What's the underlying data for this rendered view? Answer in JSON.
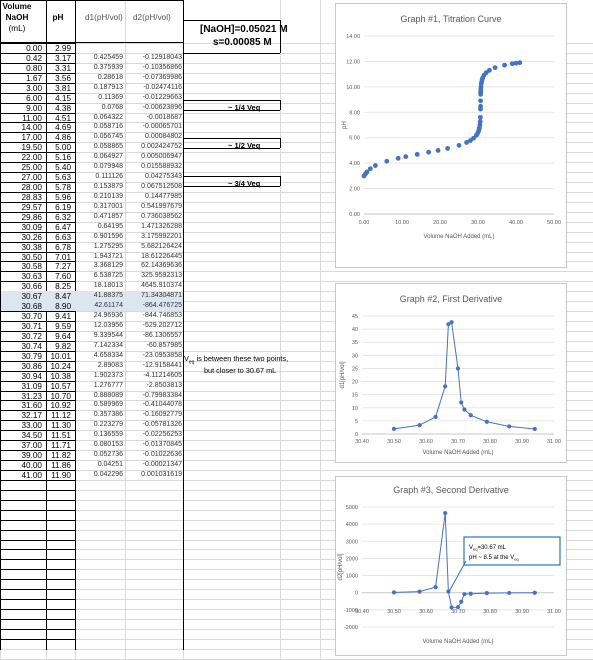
{
  "header": {
    "volume": "Volume",
    "naoh": "NaOH",
    "ml": "(mL)",
    "ph": "pH",
    "d1": "d1(pH/vol)",
    "d2": "d2(pH/vol)"
  },
  "concentration": "[NaOH]=0.05021 M",
  "stdev": "s=0.00085 M",
  "notes": {
    "quarter": "~ 1/4 Veq",
    "half": "~ 1/2 Veq",
    "three_quarter": "~ 3/4 Veq",
    "veq_line1": "V",
    "veq_sub": "eq",
    "veq_line1_rest": " is between these two points,",
    "veq_line2": "but closer to 30.67 mL"
  },
  "rows": [
    [
      "0.00",
      "2.99",
      "",
      ""
    ],
    [
      "0.42",
      "3.17",
      "0.425459",
      "-0.12918043"
    ],
    [
      "0.80",
      "3.31",
      "0.375939",
      "-0.10356866"
    ],
    [
      "1.67",
      "3.56",
      "0.28618",
      "-0.07369986"
    ],
    [
      "3.00",
      "3.81",
      "0.187913",
      "-0.02474116"
    ],
    [
      "6.00",
      "4.15",
      "0.11369",
      "-0.01229663"
    ],
    [
      "9.00",
      "4.38",
      "0.0768",
      "-0.00623896"
    ],
    [
      "11.00",
      "4.51",
      "0.064322",
      "-0.0018687"
    ],
    [
      "14.00",
      "4.69",
      "0.058716",
      "-0.00065701"
    ],
    [
      "17.00",
      "4.86",
      "0.056745",
      "0.00084802"
    ],
    [
      "19.50",
      "5.00",
      "0.058865",
      "0.002424752"
    ],
    [
      "22.00",
      "5.16",
      "0.064927",
      "0.005006947"
    ],
    [
      "25.00",
      "5.40",
      "0.079948",
      "0.015588932"
    ],
    [
      "27.00",
      "5.63",
      "0.111126",
      "0.04275343"
    ],
    [
      "28.00",
      "5.78",
      "0.153879",
      "0.067512508"
    ],
    [
      "28.83",
      "5.96",
      "0.210139",
      "0.14477985"
    ],
    [
      "29.57",
      "6.19",
      "0.317001",
      "0.541997679"
    ],
    [
      "29.86",
      "6.32",
      "0.471857",
      "0.736038562"
    ],
    [
      "30.09",
      "6.47",
      "0.64195",
      "1.471326288"
    ],
    [
      "30.26",
      "6.63",
      "0.901596",
      "3.175992201"
    ],
    [
      "30.38",
      "6.78",
      "1.275295",
      "5.682126424"
    ],
    [
      "30.50",
      "7.01",
      "1.943721",
      "18.61226445"
    ],
    [
      "30.58",
      "7.27",
      "3.368129",
      "62.14369636"
    ],
    [
      "30.63",
      "7.60",
      "6.538725",
      "325.9592313"
    ],
    [
      "30.66",
      "8.25",
      "18.18013",
      "4645.910374"
    ],
    [
      "30.67",
      "8.47",
      "41.88375",
      "71.34304871"
    ],
    [
      "30.68",
      "8.90",
      "42.61174",
      "-864.476725"
    ],
    [
      "30.70",
      "9.41",
      "24.96936",
      "-844.746853"
    ],
    [
      "30.71",
      "9.59",
      "12.03956",
      "-529.202712"
    ],
    [
      "30.72",
      "9.64",
      "9.339544",
      "-86.1306557"
    ],
    [
      "30.74",
      "9.82",
      "7.142334",
      "-60.857985"
    ],
    [
      "30.79",
      "10.01",
      "4.658334",
      "-23.0953858"
    ],
    [
      "30.86",
      "10.24",
      "2.89083",
      "-12.9158441"
    ],
    [
      "30.94",
      "10.38",
      "1.902373",
      "-4.11214605"
    ],
    [
      "31.09",
      "10.57",
      "1.276777",
      "-2.8503813"
    ],
    [
      "31.23",
      "10.70",
      "0.888089",
      "-0.79983384"
    ],
    [
      "31.60",
      "10.92",
      "0.589969",
      "-0.41044078"
    ],
    [
      "32.17",
      "11.12",
      "0.357386",
      "-0.16092779"
    ],
    [
      "33.00",
      "11.30",
      "0.223279",
      "-0.05781326"
    ],
    [
      "34.50",
      "11.51",
      "0.136559",
      "-0.02256253"
    ],
    [
      "37.00",
      "11.71",
      "0.080153",
      "-0.01370845"
    ],
    [
      "39.00",
      "11.82",
      "0.052736",
      "-0.01022636"
    ],
    [
      "40.00",
      "11.86",
      "0.04251",
      "-0.00021347"
    ],
    [
      "41.00",
      "11.90",
      "0.042296",
      "0.001031619"
    ]
  ],
  "charts": {
    "g1": {
      "title": "Graph #1, Titration Curve",
      "ylabel": "pH",
      "xlabel": "Volume NaOH Added (mL)",
      "xticks": [
        "0.00",
        "10.00",
        "20.00",
        "30.00",
        "40.00",
        "50.00"
      ],
      "yticks": [
        "0.00",
        "2.00",
        "4.00",
        "6.00",
        "8.00",
        "10.00",
        "12.00",
        "14.00"
      ]
    },
    "g2": {
      "title": "Graph #2, First Derivative",
      "ylabel": "d1[pH/vol]",
      "xlabel": "Volume NaOH Added (mL)",
      "xticks": [
        "30.40",
        "30.50",
        "30.60",
        "30.70",
        "30.80",
        "30.90",
        "31.00"
      ],
      "yticks": [
        "0",
        "5",
        "10",
        "15",
        "20",
        "25",
        "30",
        "35",
        "40",
        "45"
      ]
    },
    "g3": {
      "title": "Graph #3, Second Derivative",
      "ylabel": "d2[pH/vol]",
      "xlabel": "Volume NaOH Added (mL)",
      "xticks": [
        "30.40",
        "30.50",
        "30.60",
        "30.70",
        "30.80",
        "30.90",
        "31.00"
      ],
      "yticks": [
        "-2000",
        "-1000",
        "0",
        "1000",
        "2000",
        "3000",
        "4000",
        "5000"
      ],
      "ann1": "V",
      "ann1_sub": "eq",
      "ann1_rest": "=30.67 mL",
      "ann2": "pH ~ 8.5 at the V",
      "ann2_sub": "eq"
    }
  },
  "chart_data": [
    {
      "type": "scatter",
      "title": "Graph #1, Titration Curve",
      "xlabel": "Volume NaOH Added (mL)",
      "ylabel": "pH",
      "xlim": [
        0,
        50
      ],
      "ylim": [
        0,
        14
      ],
      "grid": true,
      "x": [
        0,
        0.42,
        0.8,
        1.67,
        3,
        6,
        9,
        11,
        14,
        17,
        19.5,
        22,
        25,
        27,
        28,
        28.83,
        29.57,
        29.86,
        30.09,
        30.26,
        30.38,
        30.5,
        30.58,
        30.63,
        30.66,
        30.67,
        30.68,
        30.7,
        30.71,
        30.72,
        30.74,
        30.79,
        30.86,
        30.94,
        31.09,
        31.23,
        31.6,
        32.17,
        33,
        34.5,
        37,
        39,
        40,
        41
      ],
      "y": [
        2.99,
        3.17,
        3.31,
        3.56,
        3.81,
        4.15,
        4.38,
        4.51,
        4.69,
        4.86,
        5,
        5.16,
        5.4,
        5.63,
        5.78,
        5.96,
        6.19,
        6.32,
        6.47,
        6.63,
        6.78,
        7.01,
        7.27,
        7.6,
        8.25,
        8.47,
        8.9,
        9.41,
        9.59,
        9.64,
        9.82,
        10.01,
        10.24,
        10.38,
        10.57,
        10.7,
        10.92,
        11.12,
        11.3,
        11.51,
        11.71,
        11.82,
        11.86,
        11.9
      ]
    },
    {
      "type": "line",
      "title": "Graph #2, First Derivative",
      "xlabel": "Volume NaOH Added (mL)",
      "ylabel": "d1[pH/vol]",
      "xlim": [
        30.4,
        31.0
      ],
      "ylim": [
        0,
        45
      ],
      "grid": true,
      "x": [
        30.38,
        30.5,
        30.58,
        30.63,
        30.66,
        30.67,
        30.68,
        30.7,
        30.71,
        30.72,
        30.74,
        30.79,
        30.86,
        30.94,
        31.09
      ],
      "y": [
        1.275,
        1.944,
        3.368,
        6.539,
        18.18,
        41.88,
        42.61,
        24.97,
        12.04,
        9.34,
        7.14,
        4.66,
        2.89,
        1.9,
        1.28
      ]
    },
    {
      "type": "line",
      "title": "Graph #3, Second Derivative",
      "xlabel": "Volume NaOH Added (mL)",
      "ylabel": "d2[pH/vol]",
      "xlim": [
        30.4,
        31.0
      ],
      "ylim": [
        -2000,
        5000
      ],
      "grid": true,
      "x": [
        30.38,
        30.5,
        30.58,
        30.63,
        30.66,
        30.67,
        30.68,
        30.7,
        30.71,
        30.72,
        30.74,
        30.79,
        30.86,
        30.94,
        31.09
      ],
      "y": [
        5.68,
        18.61,
        62.14,
        325.96,
        4645.91,
        71.34,
        -864.48,
        -844.75,
        -529.2,
        -86.13,
        -60.86,
        -23.1,
        -12.92,
        -4.11,
        -2.85
      ],
      "annotations": [
        "Veq=30.67 mL",
        "pH ~ 8.5 at the Veq"
      ]
    }
  ]
}
